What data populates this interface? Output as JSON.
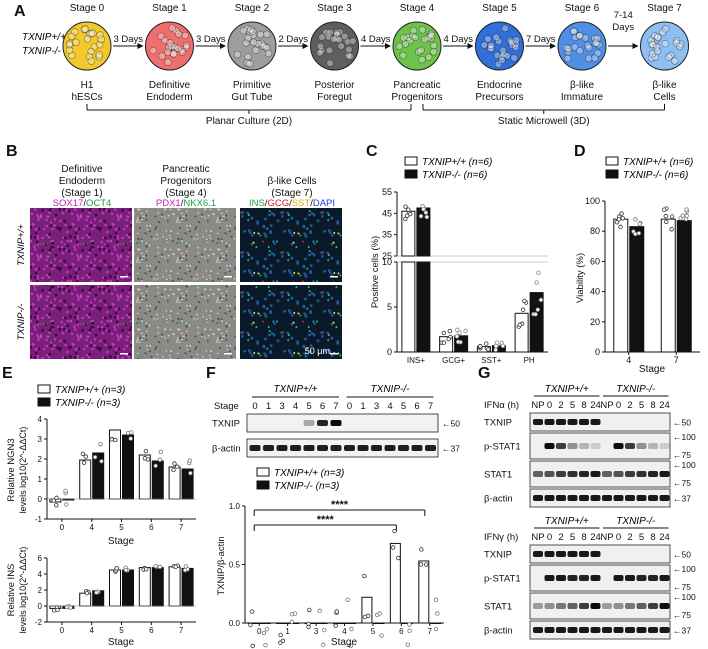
{
  "figure": {
    "panel_a": {
      "letter": "A",
      "genotype_wt": "TXNIP+/+",
      "genotype_ko": "TXNIP-/-",
      "stages": [
        {
          "stage": "Stage 0",
          "name_l1": "H1",
          "name_l2": "hESCs",
          "color": "#f2c82c"
        },
        {
          "stage": "Stage 1",
          "name_l1": "Definitive",
          "name_l2": "Endoderm",
          "color": "#ef6f6f"
        },
        {
          "stage": "Stage 2",
          "name_l1": "Primitive",
          "name_l2": "Gut Tube",
          "color": "#9e9e9e"
        },
        {
          "stage": "Stage 3",
          "name_l1": "Posterior",
          "name_l2": "Foregut",
          "color": "#5f5f5f"
        },
        {
          "stage": "Stage 4",
          "name_l1": "Pancreatic",
          "name_l2": "Progenitors",
          "color": "#6cc24a"
        },
        {
          "stage": "Stage 5",
          "name_l1": "Endocrine",
          "name_l2": "Precursors",
          "color": "#2f6fd6"
        },
        {
          "stage": "Stage 6",
          "name_l1": "β-like",
          "name_l2": "Immature",
          "color": "#4f8fe6"
        },
        {
          "stage": "Stage 7",
          "name_l1": "β-like",
          "name_l2": "Cells",
          "color": "#8fbff2"
        }
      ],
      "arrows": [
        "3 Days",
        "3 Days",
        "2 Days",
        "4 Days",
        "4 Days",
        "7 Days",
        "7-14"
      ],
      "arrow_last_l2": "Days",
      "culture_2d": "Planar Culture (2D)",
      "culture_3d": "Static Microwell (3D)"
    },
    "panel_b": {
      "letter": "B",
      "cols": [
        {
          "t1": "Definitive",
          "t2": "Endoderm",
          "t3": "(Stage 1)",
          "markers": [
            [
              "SOX17",
              "#c020c0"
            ],
            [
              "/",
              "#111111"
            ],
            [
              "OCT4",
              "#20a040"
            ]
          ]
        },
        {
          "t1": "Pancreatic",
          "t2": "Progenitors",
          "t3": "(Stage 4)",
          "markers": [
            [
              "PDX1",
              "#c020c0"
            ],
            [
              "/",
              "#111111"
            ],
            [
              "NKX6.1",
              "#20a040"
            ]
          ]
        },
        {
          "t1": "β-like Cells",
          "t2": "(Stage 7)",
          "t3": "",
          "markers": [
            [
              "INS",
              "#20a040"
            ],
            [
              "/",
              "#111111"
            ],
            [
              "GCG",
              "#d02020"
            ],
            [
              "/",
              "#111111"
            ],
            [
              "SST",
              "#e0b000"
            ],
            [
              "/",
              "#111111"
            ],
            [
              "DAPI",
              "#2040d0"
            ]
          ]
        }
      ],
      "rows": [
        "TXNIP+/+",
        "TXNIP-/-"
      ],
      "scale": "50 μm"
    },
    "panel_c": {
      "letter": "C",
      "legend_wt": "TXNIP+/+ (n=6)",
      "legend_ko": "TXNIP-/- (n=6)",
      "ylabel": "Positive cells (%)"
    },
    "panel_d": {
      "letter": "D",
      "legend_wt": "TXNIP+/+ (n=6)",
      "legend_ko": "TXNIP-/- (n=6)",
      "ylabel": "Viability (%)",
      "xlabel": "Stage"
    },
    "panel_e": {
      "letter": "E",
      "legend_wt": "TXNIP+/+ (n=3)",
      "legend_ko": "TXNIP-/- (n=3)",
      "ylabel_top_l1": "Relative NGN3",
      "ylabel_top_l2": "levels log10(2^-ΔΔCt)",
      "ylabel_bot_l1": "Relative INS",
      "ylabel_bot_l2": "levels log10(2^-ΔΔCt)",
      "xlabel": "Stage"
    },
    "panel_f": {
      "letter": "F",
      "geno_wt": "TXNIP+/+",
      "geno_ko": "TXNIP-/-",
      "stage_label": "Stage",
      "lanes": [
        "0",
        "1",
        "3",
        "4",
        "5",
        "6",
        "7",
        "0",
        "1",
        "3",
        "4",
        "5",
        "6",
        "7"
      ],
      "rows": [
        "TXNIP",
        "β-actin"
      ],
      "mw": [
        "←50",
        "←37"
      ],
      "legend_wt": "TXNIP+/+ (n=3)",
      "legend_ko": "TXNIP-/- (n=3)",
      "ylabel": "TXNIP/β-actin",
      "xlabel": "Stage",
      "sig1": "****",
      "sig2": "****"
    },
    "panel_g": {
      "letter": "G",
      "top": {
        "treat": "IFNα (h)",
        "geno_wt": "TXNIP+/+",
        "geno_ko": "TXNIP-/-",
        "lanes": [
          "NP",
          "0",
          "2",
          "5",
          "8",
          "24",
          "NP",
          "0",
          "2",
          "5",
          "8",
          "24"
        ],
        "rows": [
          "TXNIP",
          "p-STAT1",
          "STAT1",
          "β-actin"
        ],
        "mw": [
          [
            "←50"
          ],
          [
            "←100",
            "←75"
          ],
          [
            "←100",
            "←75"
          ],
          [
            "←37"
          ]
        ]
      },
      "bottom": {
        "treat": "IFNγ (h)",
        "geno_wt": "TXNIP+/+",
        "geno_ko": "TXNIP-/-",
        "lanes": [
          "NP",
          "0",
          "2",
          "5",
          "8",
          "24",
          "NP",
          "0",
          "2",
          "5",
          "8",
          "24"
        ],
        "rows": [
          "TXNIP",
          "p-STAT1",
          "STAT1",
          "β-actin"
        ],
        "mw": [
          [
            "←50"
          ],
          [
            "←100",
            "←75"
          ],
          [
            "←100",
            "←75"
          ],
          [
            "←37"
          ]
        ]
      }
    }
  },
  "chart_data": [
    {
      "panel": "C",
      "type": "bar",
      "broken_axis": true,
      "categories": [
        "INS+",
        "GCG+",
        "SST+",
        "PH"
      ],
      "ylim_lower": [
        0,
        10
      ],
      "ylim_upper": [
        25,
        55
      ],
      "yticks": [
        0,
        5,
        10,
        25,
        35,
        45,
        55
      ],
      "ylabel": "Positive cells (%)",
      "series": [
        {
          "name": "TXNIP+/+",
          "values": [
            46,
            1.7,
            0.6,
            4.3
          ]
        },
        {
          "name": "TXNIP-/-",
          "values": [
            47.5,
            1.8,
            0.7,
            6.6
          ]
        }
      ]
    },
    {
      "panel": "D",
      "type": "bar",
      "categories": [
        "4",
        "7"
      ],
      "ylim": [
        0,
        100
      ],
      "yticks": [
        0,
        20,
        40,
        60,
        80,
        100
      ],
      "xlabel": "Stage",
      "ylabel": "Viability (%)",
      "series": [
        {
          "name": "TXNIP+/+",
          "values": [
            88,
            88
          ]
        },
        {
          "name": "TXNIP-/-",
          "values": [
            83,
            87
          ]
        }
      ]
    },
    {
      "panel": "E-top",
      "type": "bar",
      "categories": [
        "0",
        "4",
        "5",
        "6",
        "7"
      ],
      "ylim": [
        -1,
        4
      ],
      "yticks": [
        -1,
        0,
        1,
        2,
        3,
        4
      ],
      "xlabel": "Stage",
      "ylabel": "Relative NGN3 levels log10(2^-ΔΔCt)",
      "series": [
        {
          "name": "TXNIP+/+",
          "values": [
            -0.15,
            1.95,
            3.45,
            2.2,
            1.6
          ]
        },
        {
          "name": "TXNIP-/-",
          "values": [
            -0.05,
            2.3,
            3.2,
            1.9,
            1.5
          ]
        }
      ]
    },
    {
      "panel": "E-bottom",
      "type": "bar",
      "categories": [
        "0",
        "4",
        "5",
        "6",
        "7"
      ],
      "ylim": [
        -2,
        6
      ],
      "yticks": [
        -2,
        0,
        2,
        4,
        6
      ],
      "xlabel": "Stage",
      "ylabel": "Relative INS levels log10(2^-ΔΔCt)",
      "series": [
        {
          "name": "TXNIP+/+",
          "values": [
            -0.3,
            1.6,
            4.5,
            4.8,
            4.9
          ]
        },
        {
          "name": "TXNIP-/-",
          "values": [
            -0.3,
            1.9,
            4.5,
            4.8,
            4.7
          ]
        }
      ]
    },
    {
      "panel": "F",
      "type": "bar",
      "categories": [
        "0",
        "1",
        "3",
        "4",
        "5",
        "6",
        "7"
      ],
      "ylim": [
        0,
        1.0
      ],
      "yticks": [
        0.0,
        0.5,
        1.0
      ],
      "xlabel": "Stage",
      "ylabel": "TXNIP/β-actin",
      "series": [
        {
          "name": "TXNIP+/+",
          "values": [
            0,
            0,
            0,
            0,
            0.22,
            0.68,
            0.53
          ]
        },
        {
          "name": "TXNIP-/-",
          "values": [
            0,
            0,
            0,
            0,
            0,
            0,
            0
          ]
        }
      ]
    }
  ]
}
